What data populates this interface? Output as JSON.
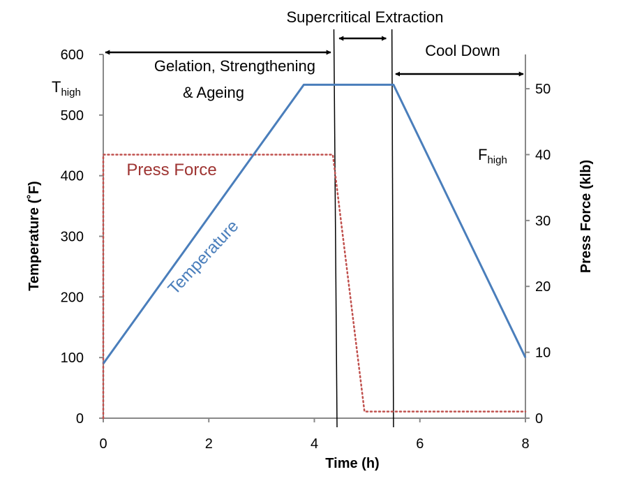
{
  "chart_data": {
    "type": "line",
    "title": "",
    "xlabel": "Time (h)",
    "ylabel_left": "Temperature (˚F)",
    "ylabel_right": "Press Force (klb)",
    "xlim": [
      0,
      8
    ],
    "ylim_left": [
      0,
      600
    ],
    "ylim_right": [
      0,
      55.2
    ],
    "x_ticks": [
      "0",
      "2",
      "4",
      "6",
      "8"
    ],
    "y_left_ticks": [
      "0",
      "100",
      "200",
      "300",
      "400",
      "500",
      "600"
    ],
    "y_right_ticks": [
      "0",
      "10",
      "20",
      "30",
      "40",
      "50"
    ],
    "grid": false,
    "series": [
      {
        "name": "Temperature",
        "axis": "left",
        "color": "#4a7ebb",
        "style": "solid",
        "x": [
          0,
          3.8,
          5.5,
          8
        ],
        "y": [
          90,
          550,
          550,
          100
        ]
      },
      {
        "name": "Press Force",
        "axis": "right",
        "color": "#c0504d",
        "style": "dotted",
        "x": [
          0,
          0,
          4.35,
          4.95,
          8
        ],
        "y": [
          0,
          40,
          40,
          1,
          1
        ]
      }
    ],
    "phase_lines_x": [
      4.43,
      5.5
    ],
    "phases": [
      {
        "label_lines": [
          "Gelation, Strengthening",
          "& Ageing"
        ],
        "x_start": 0,
        "x_end": 4.35
      },
      {
        "label_lines": [
          "Supercritical Extraction"
        ],
        "x_start": 4.43,
        "x_end": 5.4
      },
      {
        "label_lines": [
          "Cool Down"
        ],
        "x_start": 5.5,
        "x_end": 8
      }
    ],
    "annotations": {
      "t_high": {
        "main": "T",
        "sub": "high",
        "value": 550
      },
      "f_high": {
        "main": "F",
        "sub": "high",
        "value": 40
      }
    }
  }
}
